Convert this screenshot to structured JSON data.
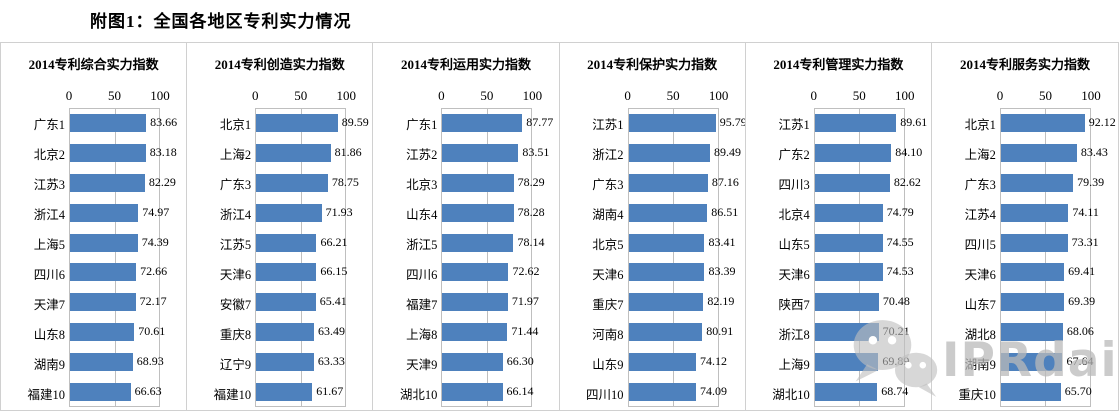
{
  "header": {
    "title": "附图1：全国各地区专利实力情况"
  },
  "watermark": {
    "text": "IPRdaily",
    "icon": "wechat-logo"
  },
  "colors": {
    "bar": "#4E81BD",
    "plot_border": "#BFBFBF",
    "panel_divider": "#D0D0D0",
    "text": "#000000",
    "watermark": "#B9B9B9"
  },
  "chart_data": [
    {
      "type": "bar",
      "orientation": "horizontal",
      "title": "2014专利综合实力指数",
      "xlim": [
        0,
        100
      ],
      "ticks": [
        0,
        50,
        100
      ],
      "grid": true,
      "categories": [
        "广东1",
        "北京2",
        "江苏3",
        "浙江4",
        "上海5",
        "四川6",
        "天津7",
        "山东8",
        "湖南9",
        "福建10"
      ],
      "values": [
        83.66,
        83.18,
        82.29,
        74.97,
        74.39,
        72.66,
        72.17,
        70.61,
        68.93,
        66.63
      ]
    },
    {
      "type": "bar",
      "orientation": "horizontal",
      "title": "2014专利创造实力指数",
      "xlim": [
        0,
        100
      ],
      "ticks": [
        0,
        50,
        100
      ],
      "grid": true,
      "categories": [
        "北京1",
        "上海2",
        "广东3",
        "浙江4",
        "江苏5",
        "天津6",
        "安徽7",
        "重庆8",
        "辽宁9",
        "福建10"
      ],
      "values": [
        89.59,
        81.86,
        78.75,
        71.93,
        66.21,
        66.15,
        65.41,
        63.49,
        63.33,
        61.67
      ]
    },
    {
      "type": "bar",
      "orientation": "horizontal",
      "title": "2014专利运用实力指数",
      "xlim": [
        0,
        100
      ],
      "ticks": [
        0,
        50,
        100
      ],
      "grid": true,
      "categories": [
        "广东1",
        "江苏2",
        "北京3",
        "山东4",
        "浙江5",
        "四川6",
        "福建7",
        "上海8",
        "天津9",
        "湖北10"
      ],
      "values": [
        87.77,
        83.51,
        78.29,
        78.28,
        78.14,
        72.62,
        71.97,
        71.44,
        66.3,
        66.14
      ]
    },
    {
      "type": "bar",
      "orientation": "horizontal",
      "title": "2014专利保护实力指数",
      "xlim": [
        0,
        100
      ],
      "ticks": [
        0,
        50,
        100
      ],
      "grid": true,
      "categories": [
        "江苏1",
        "浙江2",
        "广东3",
        "湖南4",
        "北京5",
        "天津6",
        "重庆7",
        "河南8",
        "山东9",
        "四川10"
      ],
      "values": [
        95.79,
        89.49,
        87.16,
        86.51,
        83.41,
        83.39,
        82.19,
        80.91,
        74.12,
        74.09
      ]
    },
    {
      "type": "bar",
      "orientation": "horizontal",
      "title": "2014专利管理实力指数",
      "xlim": [
        0,
        100
      ],
      "ticks": [
        0,
        50,
        100
      ],
      "grid": true,
      "categories": [
        "江苏1",
        "广东2",
        "四川3",
        "北京4",
        "山东5",
        "天津6",
        "陕西7",
        "浙江8",
        "上海9",
        "湖北10"
      ],
      "values": [
        89.61,
        84.1,
        82.62,
        74.79,
        74.55,
        74.53,
        70.48,
        70.21,
        69.89,
        68.74
      ]
    },
    {
      "type": "bar",
      "orientation": "horizontal",
      "title": "2014专利服务实力指数",
      "xlim": [
        0,
        100
      ],
      "ticks": [
        0,
        50,
        100
      ],
      "grid": true,
      "categories": [
        "北京1",
        "上海2",
        "广东3",
        "江苏4",
        "四川5",
        "天津6",
        "山东7",
        "湖北8",
        "湖南9",
        "重庆10"
      ],
      "values": [
        92.12,
        83.43,
        79.39,
        74.11,
        73.31,
        69.41,
        69.39,
        68.06,
        67.64,
        65.7
      ]
    }
  ]
}
